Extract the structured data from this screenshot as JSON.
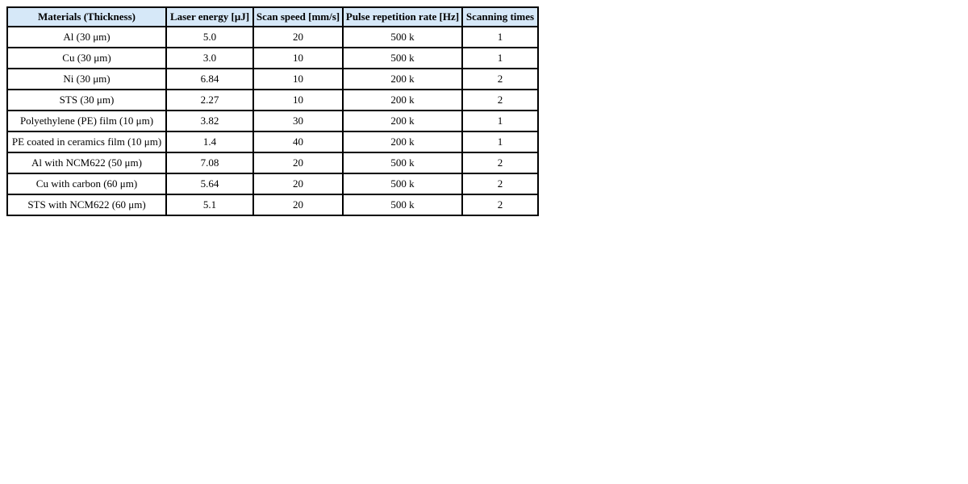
{
  "page": {
    "background_color": "#ffffff"
  },
  "table": {
    "header_background_color": "#d6e8f8",
    "border_color": "#000000",
    "columns": [
      "Materials (Thickness)",
      "Laser energy [μJ]",
      "Scan speed [mm/s]",
      "Pulse repetition rate [Hz]",
      "Scanning times"
    ],
    "rows": [
      [
        "Al (30 μm)",
        "5.0",
        "20",
        "500 k",
        "1"
      ],
      [
        "Cu (30 μm)",
        "3.0",
        "10",
        "500 k",
        "1"
      ],
      [
        "Ni (30 μm)",
        "6.84",
        "10",
        "200 k",
        "2"
      ],
      [
        "STS (30 μm)",
        "2.27",
        "10",
        "200 k",
        "2"
      ],
      [
        "Polyethylene (PE) film (10 μm)",
        "3.82",
        "30",
        "200 k",
        "1"
      ],
      [
        "PE coated in ceramics film (10 μm)",
        "1.4",
        "40",
        "200 k",
        "1"
      ],
      [
        "Al with NCM622 (50 μm)",
        "7.08",
        "20",
        "500 k",
        "2"
      ],
      [
        "Cu with carbon (60 μm)",
        "5.64",
        "20",
        "500 k",
        "2"
      ],
      [
        "STS with NCM622 (60 μm)",
        "5.1",
        "20",
        "500 k",
        "2"
      ]
    ]
  },
  "chart_data": {
    "type": "table",
    "title": "",
    "columns": [
      "Materials (Thickness)",
      "Laser energy [μJ]",
      "Scan speed [mm/s]",
      "Pulse repetition rate [Hz]",
      "Scanning times"
    ],
    "rows": [
      [
        "Al (30 μm)",
        "5.0",
        "20",
        "500 k",
        "1"
      ],
      [
        "Cu (30 μm)",
        "3.0",
        "10",
        "500 k",
        "1"
      ],
      [
        "Ni (30 μm)",
        "6.84",
        "10",
        "200 k",
        "2"
      ],
      [
        "STS (30 μm)",
        "2.27",
        "10",
        "200 k",
        "2"
      ],
      [
        "Polyethylene (PE) film (10 μm)",
        "3.82",
        "30",
        "200 k",
        "1"
      ],
      [
        "PE coated in ceramics film (10 μm)",
        "1.4",
        "40",
        "200 k",
        "1"
      ],
      [
        "Al with NCM622 (50 μm)",
        "7.08",
        "20",
        "500 k",
        "2"
      ],
      [
        "Cu with carbon (60 μm)",
        "5.64",
        "20",
        "500 k",
        "2"
      ],
      [
        "STS with NCM622 (60 μm)",
        "5.1",
        "20",
        "500 k",
        "2"
      ]
    ]
  }
}
